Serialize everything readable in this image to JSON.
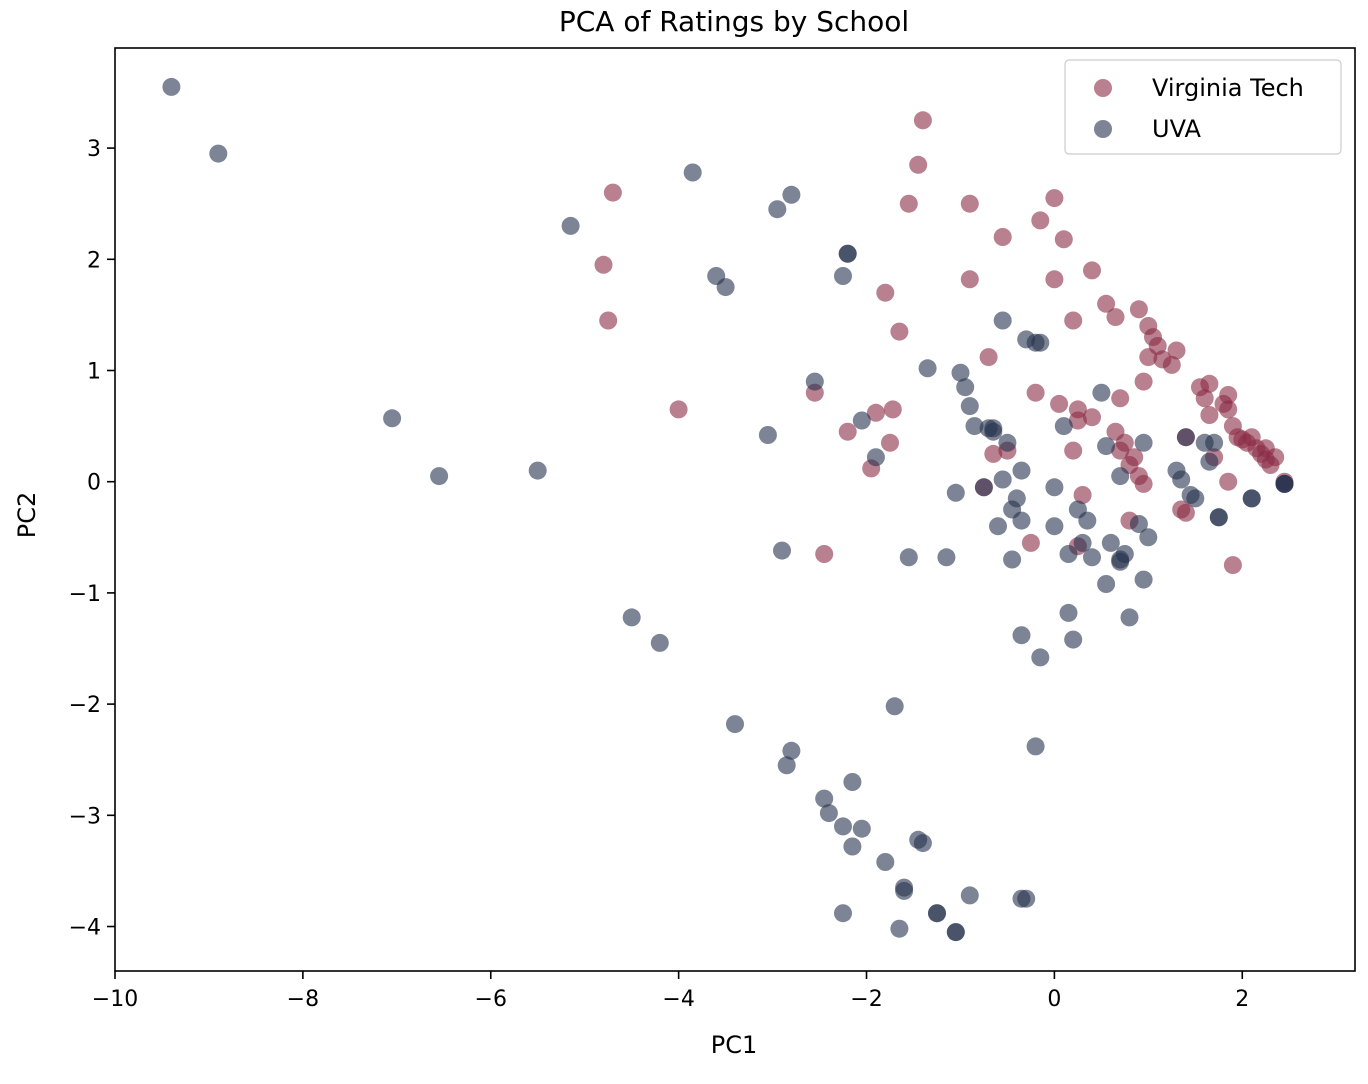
{
  "chart_data": {
    "type": "scatter",
    "title": "PCA of Ratings by School",
    "xlabel": "PC1",
    "ylabel": "PC2",
    "xlim": [
      -10,
      3.2
    ],
    "ylim": [
      -4.4,
      3.9
    ],
    "xticks": [
      -10,
      -8,
      -6,
      -4,
      -2,
      0,
      2
    ],
    "yticks": [
      -4,
      -3,
      -2,
      -1,
      0,
      1,
      2,
      3
    ],
    "xtick_labels": [
      "−10",
      "−8",
      "−6",
      "−4",
      "−2",
      "0",
      "2"
    ],
    "ytick_labels": [
      "−4",
      "−3",
      "−2",
      "−1",
      "0",
      "1",
      "2",
      "3"
    ],
    "grid": false,
    "legend_position": "top-right",
    "series": [
      {
        "name": "Virginia Tech",
        "color": "#8b2c45",
        "points": [
          [
            -4.7,
            2.6
          ],
          [
            -4.8,
            1.95
          ],
          [
            -4.75,
            1.45
          ],
          [
            -4.0,
            0.65
          ],
          [
            -2.55,
            0.8
          ],
          [
            -2.45,
            -0.65
          ],
          [
            -2.2,
            0.45
          ],
          [
            -1.95,
            0.12
          ],
          [
            -1.9,
            0.62
          ],
          [
            -1.8,
            1.7
          ],
          [
            -1.75,
            0.35
          ],
          [
            -1.72,
            0.65
          ],
          [
            -1.65,
            1.35
          ],
          [
            -1.55,
            2.5
          ],
          [
            -1.45,
            2.85
          ],
          [
            -1.4,
            3.25
          ],
          [
            -0.9,
            2.5
          ],
          [
            -0.9,
            1.82
          ],
          [
            -0.7,
            1.12
          ],
          [
            -0.65,
            0.25
          ],
          [
            -0.75,
            -0.05
          ],
          [
            -0.55,
            2.2
          ],
          [
            -0.5,
            0.28
          ],
          [
            -0.25,
            -0.55
          ],
          [
            -0.2,
            0.8
          ],
          [
            -0.15,
            2.35
          ],
          [
            0.0,
            2.55
          ],
          [
            0.0,
            1.82
          ],
          [
            0.05,
            0.7
          ],
          [
            0.1,
            2.18
          ],
          [
            0.2,
            1.45
          ],
          [
            0.2,
            0.28
          ],
          [
            0.25,
            0.65
          ],
          [
            0.25,
            0.55
          ],
          [
            0.3,
            -0.12
          ],
          [
            0.25,
            -0.58
          ],
          [
            0.4,
            0.58
          ],
          [
            0.4,
            1.9
          ],
          [
            0.55,
            1.6
          ],
          [
            0.65,
            1.48
          ],
          [
            0.65,
            0.45
          ],
          [
            0.7,
            0.28
          ],
          [
            0.7,
            0.75
          ],
          [
            0.75,
            0.35
          ],
          [
            0.8,
            0.15
          ],
          [
            0.8,
            -0.35
          ],
          [
            0.85,
            0.22
          ],
          [
            0.9,
            0.05
          ],
          [
            0.9,
            1.55
          ],
          [
            0.95,
            0.9
          ],
          [
            1.0,
            1.4
          ],
          [
            1.0,
            1.12
          ],
          [
            1.05,
            1.3
          ],
          [
            1.1,
            1.22
          ],
          [
            1.15,
            1.1
          ],
          [
            1.25,
            1.05
          ],
          [
            1.3,
            1.18
          ],
          [
            1.35,
            -0.25
          ],
          [
            1.4,
            -0.28
          ],
          [
            1.4,
            0.4
          ],
          [
            1.55,
            0.85
          ],
          [
            1.6,
            0.75
          ],
          [
            1.65,
            0.6
          ],
          [
            1.7,
            0.22
          ],
          [
            1.65,
            0.88
          ],
          [
            1.8,
            0.7
          ],
          [
            1.85,
            0.65
          ],
          [
            1.85,
            0.78
          ],
          [
            1.9,
            0.5
          ],
          [
            1.95,
            0.4
          ],
          [
            2.0,
            0.38
          ],
          [
            2.05,
            0.35
          ],
          [
            2.1,
            0.4
          ],
          [
            2.15,
            0.3
          ],
          [
            2.2,
            0.25
          ],
          [
            2.25,
            0.3
          ],
          [
            2.25,
            0.2
          ],
          [
            2.3,
            0.15
          ],
          [
            2.35,
            0.22
          ],
          [
            1.9,
            -0.75
          ],
          [
            1.85,
            0.0
          ],
          [
            0.95,
            -0.02
          ],
          [
            2.45,
            0.0
          ]
        ]
      },
      {
        "name": "UVA",
        "color": "#26324f",
        "points": [
          [
            -9.4,
            3.55
          ],
          [
            -8.9,
            2.95
          ],
          [
            -7.05,
            0.57
          ],
          [
            -6.55,
            0.05
          ],
          [
            -5.5,
            0.1
          ],
          [
            -5.15,
            2.3
          ],
          [
            -4.5,
            -1.22
          ],
          [
            -4.2,
            -1.45
          ],
          [
            -3.85,
            2.78
          ],
          [
            -3.6,
            1.85
          ],
          [
            -3.5,
            1.75
          ],
          [
            -3.4,
            -2.18
          ],
          [
            -3.05,
            0.42
          ],
          [
            -2.95,
            2.45
          ],
          [
            -2.9,
            -0.62
          ],
          [
            -2.85,
            -2.55
          ],
          [
            -2.8,
            2.58
          ],
          [
            -2.8,
            -2.42
          ],
          [
            -2.55,
            0.9
          ],
          [
            -2.45,
            -2.85
          ],
          [
            -2.4,
            -2.98
          ],
          [
            -2.25,
            1.85
          ],
          [
            -2.2,
            2.05
          ],
          [
            -2.2,
            2.05
          ],
          [
            -2.25,
            -3.1
          ],
          [
            -2.25,
            -3.88
          ],
          [
            -2.15,
            -2.7
          ],
          [
            -2.15,
            -3.28
          ],
          [
            -2.05,
            -3.12
          ],
          [
            -2.05,
            0.55
          ],
          [
            -1.9,
            0.22
          ],
          [
            -1.8,
            -3.42
          ],
          [
            -1.7,
            -2.02
          ],
          [
            -1.65,
            -4.02
          ],
          [
            -1.6,
            -3.65
          ],
          [
            -1.6,
            -3.68
          ],
          [
            -1.55,
            -0.68
          ],
          [
            -1.45,
            -3.22
          ],
          [
            -1.4,
            -3.25
          ],
          [
            -1.35,
            1.02
          ],
          [
            -1.25,
            -3.88
          ],
          [
            -1.25,
            -3.88
          ],
          [
            -1.15,
            -0.68
          ],
          [
            -1.05,
            -4.05
          ],
          [
            -1.05,
            -4.05
          ],
          [
            -1.05,
            -0.1
          ],
          [
            -1.0,
            0.98
          ],
          [
            -0.95,
            0.85
          ],
          [
            -0.9,
            0.68
          ],
          [
            -0.9,
            -3.72
          ],
          [
            -0.85,
            0.5
          ],
          [
            -0.75,
            -0.05
          ],
          [
            -0.7,
            0.48
          ],
          [
            -0.65,
            0.45
          ],
          [
            -0.65,
            0.48
          ],
          [
            -0.6,
            -0.4
          ],
          [
            -0.55,
            1.45
          ],
          [
            -0.55,
            0.02
          ],
          [
            -0.5,
            0.35
          ],
          [
            -0.45,
            -0.25
          ],
          [
            -0.45,
            -0.7
          ],
          [
            -0.4,
            -0.15
          ],
          [
            -0.35,
            -1.38
          ],
          [
            -0.35,
            0.1
          ],
          [
            -0.35,
            -0.35
          ],
          [
            -0.3,
            1.28
          ],
          [
            -0.3,
            -3.75
          ],
          [
            -0.35,
            -3.75
          ],
          [
            -0.2,
            1.25
          ],
          [
            -0.15,
            1.25
          ],
          [
            -0.2,
            -2.38
          ],
          [
            -0.15,
            -1.58
          ],
          [
            0.0,
            -0.05
          ],
          [
            0.0,
            -0.4
          ],
          [
            0.1,
            0.5
          ],
          [
            0.15,
            -1.18
          ],
          [
            0.15,
            -0.65
          ],
          [
            0.2,
            -1.42
          ],
          [
            0.25,
            -0.25
          ],
          [
            0.3,
            -0.55
          ],
          [
            0.35,
            -0.35
          ],
          [
            0.4,
            -0.68
          ],
          [
            0.5,
            0.8
          ],
          [
            0.55,
            0.32
          ],
          [
            0.55,
            -0.92
          ],
          [
            0.6,
            -0.55
          ],
          [
            0.7,
            -0.7
          ],
          [
            0.7,
            -0.72
          ],
          [
            0.7,
            0.05
          ],
          [
            0.75,
            -0.65
          ],
          [
            0.8,
            -1.22
          ],
          [
            0.9,
            -0.38
          ],
          [
            0.95,
            -0.88
          ],
          [
            0.95,
            0.35
          ],
          [
            1.0,
            -0.5
          ],
          [
            1.3,
            0.1
          ],
          [
            1.35,
            0.02
          ],
          [
            1.4,
            0.4
          ],
          [
            1.45,
            -0.12
          ],
          [
            1.5,
            -0.15
          ],
          [
            1.6,
            0.35
          ],
          [
            1.65,
            0.18
          ],
          [
            1.7,
            0.35
          ],
          [
            1.75,
            -0.32
          ],
          [
            1.75,
            -0.32
          ],
          [
            2.1,
            -0.15
          ],
          [
            2.1,
            -0.15
          ],
          [
            2.45,
            -0.02
          ],
          [
            2.45,
            -0.02
          ],
          [
            2.45,
            -0.02
          ]
        ]
      }
    ]
  }
}
